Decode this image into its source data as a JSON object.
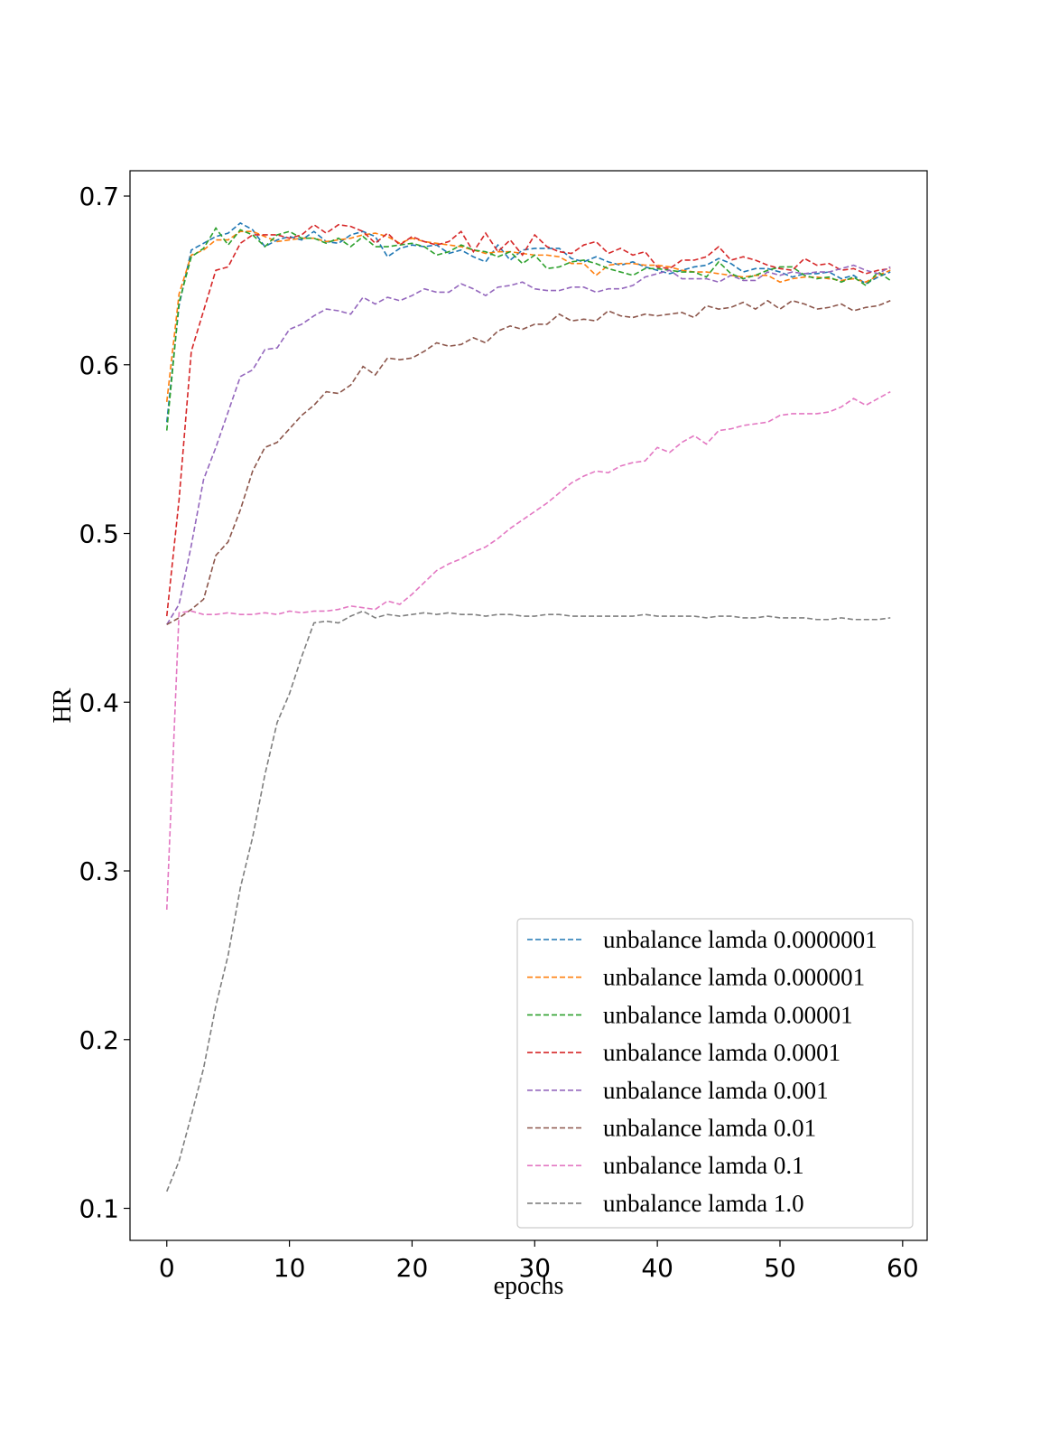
{
  "chart_data": {
    "type": "line",
    "title": "",
    "xlabel": "epochs",
    "ylabel": "HR",
    "xlim": [
      -3,
      62
    ],
    "ylim": [
      0.081,
      0.715
    ],
    "xticks": [
      0,
      10,
      20,
      30,
      40,
      50,
      60
    ],
    "yticks": [
      0.1,
      0.2,
      0.3,
      0.4,
      0.5,
      0.6,
      0.7
    ],
    "xtick_labels": [
      "0",
      "10",
      "20",
      "30",
      "40",
      "50",
      "60"
    ],
    "ytick_labels": [
      "0.1",
      "0.2",
      "0.3",
      "0.4",
      "0.5",
      "0.6",
      "0.7"
    ],
    "grid": false,
    "legend_position": "lower-right",
    "line_style": "dashed",
    "series": [
      {
        "name": "unbalance lamda 0.0000001",
        "color": "#1f77b4",
        "y": [
          0.566,
          0.635,
          0.668,
          0.672,
          0.676,
          0.678,
          0.684,
          0.68,
          0.67,
          0.674,
          0.676,
          0.674,
          0.679,
          0.673,
          0.672,
          0.677,
          0.679,
          0.676,
          0.664,
          0.669,
          0.671,
          0.67,
          0.671,
          0.666,
          0.668,
          0.664,
          0.661,
          0.671,
          0.662,
          0.668,
          0.669,
          0.669,
          0.669,
          0.663,
          0.661,
          0.664,
          0.661,
          0.659,
          0.661,
          0.658,
          0.656,
          0.654,
          0.656,
          0.658,
          0.659,
          0.663,
          0.66,
          0.655,
          0.657,
          0.657,
          0.655,
          0.652,
          0.654,
          0.654,
          0.655,
          0.651,
          0.653,
          0.648,
          0.652,
          0.655
        ]
      },
      {
        "name": "unbalance lamda 0.000001",
        "color": "#ff7f0e",
        "y": [
          0.578,
          0.642,
          0.665,
          0.668,
          0.674,
          0.674,
          0.679,
          0.679,
          0.676,
          0.673,
          0.674,
          0.675,
          0.675,
          0.673,
          0.674,
          0.675,
          0.677,
          0.678,
          0.676,
          0.672,
          0.675,
          0.673,
          0.672,
          0.671,
          0.67,
          0.668,
          0.666,
          0.667,
          0.667,
          0.666,
          0.665,
          0.665,
          0.664,
          0.66,
          0.66,
          0.653,
          0.659,
          0.66,
          0.66,
          0.659,
          0.659,
          0.658,
          0.656,
          0.655,
          0.655,
          0.654,
          0.653,
          0.652,
          0.653,
          0.653,
          0.649,
          0.651,
          0.652,
          0.652,
          0.651,
          0.65,
          0.651,
          0.649,
          0.653,
          0.656
        ]
      },
      {
        "name": "unbalance lamda 0.00001",
        "color": "#2ca02c",
        "y": [
          0.561,
          0.637,
          0.664,
          0.669,
          0.681,
          0.671,
          0.68,
          0.677,
          0.67,
          0.677,
          0.679,
          0.675,
          0.675,
          0.672,
          0.675,
          0.67,
          0.676,
          0.67,
          0.67,
          0.671,
          0.672,
          0.67,
          0.665,
          0.667,
          0.671,
          0.668,
          0.667,
          0.664,
          0.667,
          0.66,
          0.665,
          0.657,
          0.658,
          0.661,
          0.662,
          0.66,
          0.657,
          0.655,
          0.653,
          0.657,
          0.657,
          0.656,
          0.655,
          0.655,
          0.652,
          0.661,
          0.654,
          0.651,
          0.653,
          0.656,
          0.658,
          0.658,
          0.653,
          0.651,
          0.652,
          0.649,
          0.652,
          0.647,
          0.655,
          0.65
        ]
      },
      {
        "name": "unbalance lamda 0.0001",
        "color": "#d62728",
        "y": [
          0.451,
          0.52,
          0.608,
          0.632,
          0.656,
          0.658,
          0.672,
          0.677,
          0.677,
          0.677,
          0.675,
          0.677,
          0.683,
          0.678,
          0.683,
          0.682,
          0.679,
          0.672,
          0.678,
          0.671,
          0.676,
          0.673,
          0.671,
          0.673,
          0.679,
          0.667,
          0.678,
          0.667,
          0.674,
          0.665,
          0.677,
          0.67,
          0.667,
          0.666,
          0.671,
          0.673,
          0.666,
          0.669,
          0.665,
          0.667,
          0.658,
          0.657,
          0.662,
          0.662,
          0.664,
          0.67,
          0.662,
          0.664,
          0.662,
          0.659,
          0.657,
          0.656,
          0.663,
          0.659,
          0.66,
          0.656,
          0.657,
          0.654,
          0.656,
          0.657
        ]
      },
      {
        "name": "unbalance lamda 0.001",
        "color": "#9467bd",
        "y": [
          0.446,
          0.458,
          0.493,
          0.532,
          0.551,
          0.572,
          0.593,
          0.597,
          0.609,
          0.61,
          0.621,
          0.624,
          0.629,
          0.633,
          0.632,
          0.63,
          0.64,
          0.636,
          0.64,
          0.638,
          0.641,
          0.645,
          0.643,
          0.643,
          0.648,
          0.645,
          0.641,
          0.646,
          0.647,
          0.649,
          0.645,
          0.644,
          0.644,
          0.646,
          0.646,
          0.643,
          0.645,
          0.645,
          0.647,
          0.652,
          0.654,
          0.656,
          0.651,
          0.651,
          0.651,
          0.649,
          0.653,
          0.65,
          0.65,
          0.655,
          0.653,
          0.655,
          0.654,
          0.655,
          0.655,
          0.657,
          0.659,
          0.656,
          0.654,
          0.658
        ]
      },
      {
        "name": "unbalance lamda 0.01",
        "color": "#8c564b",
        "y": [
          0.446,
          0.45,
          0.455,
          0.461,
          0.487,
          0.495,
          0.514,
          0.537,
          0.551,
          0.554,
          0.562,
          0.57,
          0.576,
          0.584,
          0.583,
          0.588,
          0.599,
          0.594,
          0.604,
          0.603,
          0.604,
          0.608,
          0.613,
          0.611,
          0.612,
          0.616,
          0.613,
          0.62,
          0.623,
          0.621,
          0.624,
          0.624,
          0.63,
          0.626,
          0.627,
          0.626,
          0.632,
          0.629,
          0.628,
          0.63,
          0.629,
          0.63,
          0.631,
          0.628,
          0.635,
          0.633,
          0.634,
          0.637,
          0.633,
          0.638,
          0.633,
          0.638,
          0.636,
          0.633,
          0.634,
          0.636,
          0.632,
          0.634,
          0.635,
          0.638
        ]
      },
      {
        "name": "unbalance lamda 0.1",
        "color": "#e377c2",
        "y": [
          0.277,
          0.453,
          0.454,
          0.452,
          0.452,
          0.453,
          0.452,
          0.452,
          0.453,
          0.452,
          0.454,
          0.453,
          0.454,
          0.454,
          0.455,
          0.457,
          0.456,
          0.455,
          0.46,
          0.458,
          0.464,
          0.471,
          0.478,
          0.482,
          0.485,
          0.489,
          0.492,
          0.497,
          0.503,
          0.508,
          0.513,
          0.518,
          0.524,
          0.53,
          0.534,
          0.537,
          0.536,
          0.54,
          0.542,
          0.543,
          0.551,
          0.548,
          0.554,
          0.558,
          0.553,
          0.561,
          0.562,
          0.564,
          0.565,
          0.566,
          0.57,
          0.571,
          0.571,
          0.571,
          0.572,
          0.575,
          0.58,
          0.576,
          0.58,
          0.584
        ]
      },
      {
        "name": "unbalance lamda 1.0",
        "color": "#7f7f7f",
        "y": [
          0.11,
          0.128,
          0.155,
          0.183,
          0.22,
          0.25,
          0.29,
          0.32,
          0.357,
          0.388,
          0.405,
          0.427,
          0.447,
          0.448,
          0.447,
          0.451,
          0.454,
          0.45,
          0.452,
          0.451,
          0.452,
          0.453,
          0.452,
          0.453,
          0.452,
          0.452,
          0.451,
          0.452,
          0.452,
          0.451,
          0.451,
          0.452,
          0.452,
          0.451,
          0.451,
          0.451,
          0.451,
          0.451,
          0.451,
          0.452,
          0.451,
          0.451,
          0.451,
          0.451,
          0.45,
          0.451,
          0.451,
          0.45,
          0.45,
          0.451,
          0.45,
          0.45,
          0.45,
          0.449,
          0.449,
          0.45,
          0.449,
          0.449,
          0.449,
          0.45
        ]
      }
    ]
  }
}
